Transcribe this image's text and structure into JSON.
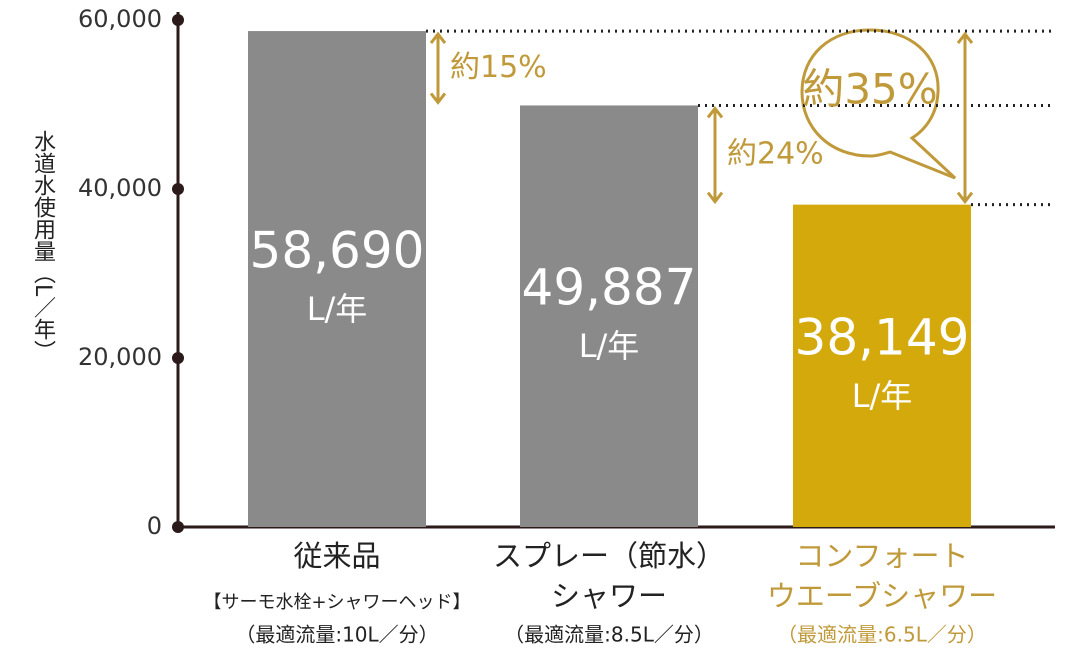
{
  "chart_data": {
    "type": "bar",
    "y_label": "水道水使用量（L／年）",
    "categories": [
      [
        "従来品",
        "【サーモ水栓+シャワーヘッド】"
      ],
      [
        "スプレー（節水）",
        "シャワー"
      ],
      [
        "コンフォート",
        "ウエーブシャワー"
      ]
    ],
    "conditions": [
      "（最適流量:10L／分）",
      "（最適流量:8.5L／分）",
      "（最適流量:6.5L／分）"
    ],
    "values": [
      58690,
      49887,
      38149
    ],
    "value_labels": [
      "58,690",
      "49,887",
      "38,149"
    ],
    "unit": "L/年",
    "colors": [
      "#8a8a8a",
      "#8a8a8a",
      "#d4a90c"
    ],
    "annotations": [
      "約15%",
      "約24%",
      "約35%"
    ],
    "ylim": [
      0,
      60000
    ],
    "yticks": [
      0,
      {
        "value": 20000,
        "label": "20,000"
      },
      {
        "value": 40000,
        "label": "40,000"
      },
      {
        "value": 60000,
        "label": "60,000"
      }
    ]
  }
}
